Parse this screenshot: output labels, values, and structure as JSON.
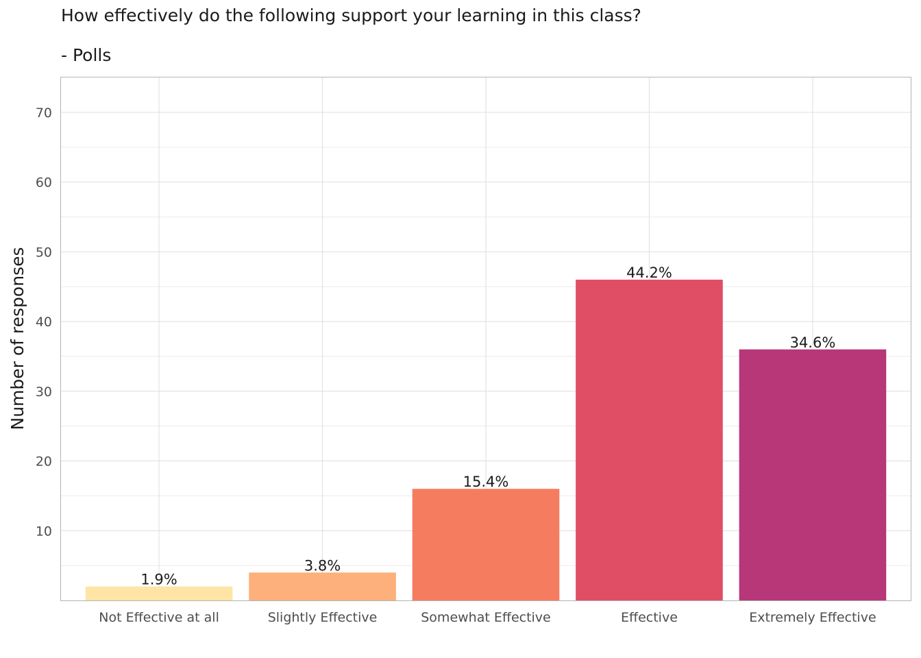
{
  "chart_data": {
    "type": "bar",
    "title": "How effectively do the following support your learning in this class?",
    "subtitle": "- Polls",
    "xlabel": "",
    "ylabel": "Number of responses",
    "categories": [
      "Not Effective at all",
      "Slightly Effective",
      "Somewhat Effective",
      "Effective",
      "Extremely Effective"
    ],
    "values": [
      2,
      4,
      16,
      46,
      36
    ],
    "labels": [
      "1.9%",
      "3.8%",
      "15.4%",
      "44.2%",
      "34.6%"
    ],
    "colors": [
      "#fee5a5",
      "#fdb07b",
      "#f67c5f",
      "#e04e65",
      "#b73779"
    ],
    "yticks": [
      10,
      20,
      30,
      40,
      50,
      60,
      70
    ],
    "ylim": [
      0,
      75
    ],
    "grid": true,
    "legend": "none"
  }
}
